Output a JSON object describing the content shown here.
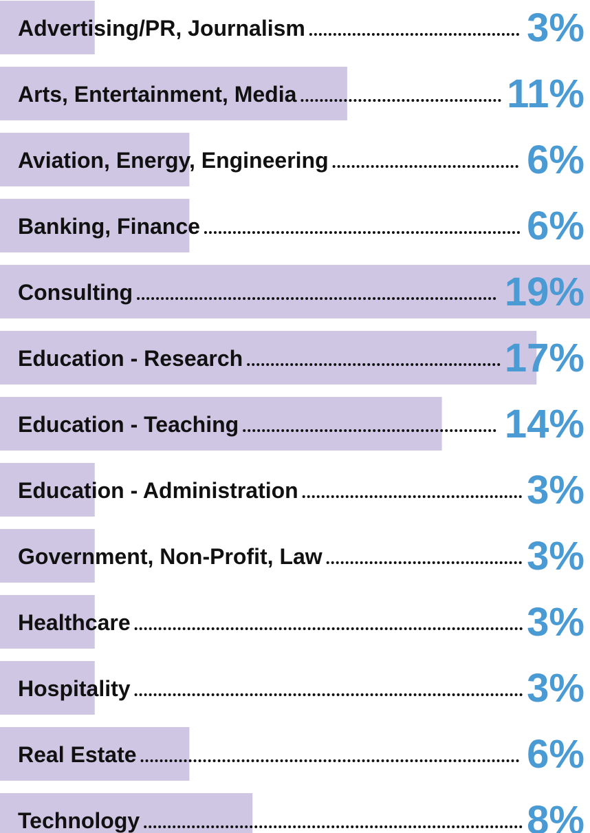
{
  "chart_data": {
    "type": "bar",
    "orientation": "horizontal",
    "categories": [
      "Advertising/PR, Journalism",
      "Arts, Entertainment, Media",
      "Aviation, Energy, Engineering",
      "Banking, Finance",
      "Consulting",
      "Education - Research",
      "Education - Teaching",
      "Education - Administration",
      "Government, Non-Profit, Law",
      "Healthcare",
      "Hospitality",
      "Real Estate",
      "Technology"
    ],
    "values": [
      3,
      11,
      6,
      6,
      19,
      17,
      14,
      3,
      3,
      3,
      3,
      6,
      8
    ],
    "value_labels": [
      "3%",
      "11%",
      "6%",
      "6%",
      "19%",
      "17%",
      "14%",
      "3%",
      "3%",
      "3%",
      "3%",
      "6%",
      "8%"
    ],
    "color": "#cfc6e3",
    "label_color": "#4a9ad4"
  }
}
